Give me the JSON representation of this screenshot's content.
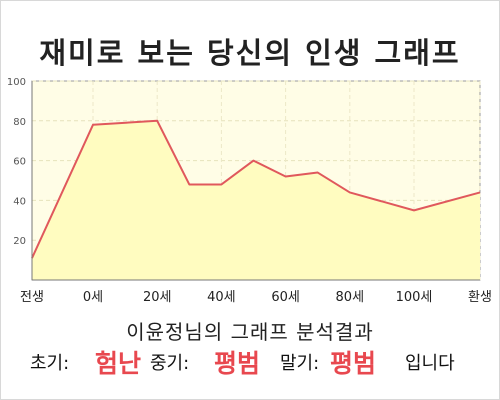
{
  "title": "재미로 보는 당신의 인생 그래프",
  "subtitle": "이윤정님의 그래프 분석결과",
  "result": {
    "early_label": "초기:",
    "early_value": "험난",
    "middle_label": "중기:",
    "middle_value": "평범",
    "late_label": "말기:",
    "late_value": "평범",
    "suffix": "입니다"
  },
  "colors": {
    "line": "#e0585c",
    "fill": "#fffcc0",
    "plot_bg": "#fffde6",
    "accent_text": "#e8484f"
  },
  "chart_data": {
    "type": "area",
    "title": "재미로 보는 당신의 인생 그래프",
    "xlabel": "",
    "ylabel": "",
    "xticks": [
      "전생",
      "0세",
      "20세",
      "40세",
      "60세",
      "80세",
      "100세",
      "환생"
    ],
    "yticks": [
      20,
      40,
      60,
      80,
      100
    ],
    "ylim": [
      0,
      100
    ],
    "grid": true,
    "series": [
      {
        "values": [
          {
            "x": "전생",
            "y": 11
          },
          {
            "x": "0세",
            "y": 78
          },
          {
            "x": "20세",
            "y": 80
          },
          {
            "x": "30세",
            "y": 48
          },
          {
            "x": "40세",
            "y": 48
          },
          {
            "x": "50세",
            "y": 60
          },
          {
            "x": "60세",
            "y": 52
          },
          {
            "x": "70세",
            "y": 54
          },
          {
            "x": "80세",
            "y": 44
          },
          {
            "x": "100세",
            "y": 35
          },
          {
            "x": "환생",
            "y": 44
          }
        ]
      }
    ]
  }
}
